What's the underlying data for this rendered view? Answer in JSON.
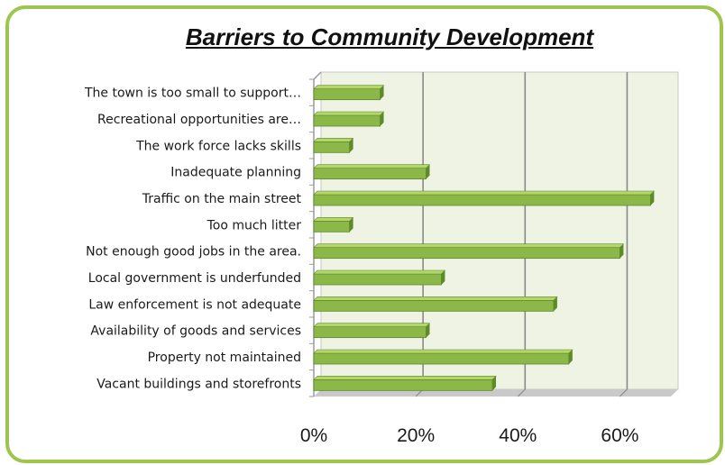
{
  "chart_data": {
    "type": "bar",
    "orientation": "horizontal",
    "title": "Barriers to Community Development",
    "categories": [
      "The town is too small to support…",
      "Recreational opportunities are…",
      "The work force lacks skills",
      "Inadequate planning",
      "Traffic on the main street",
      "Too much litter",
      "Not enough good jobs in the area.",
      "Local government is underfunded",
      "Law enforcement is not adequate",
      "Availability of goods and services",
      "Property not maintained",
      "Vacant buildings and storefronts"
    ],
    "values": [
      13,
      13,
      7,
      22,
      66,
      7,
      60,
      25,
      47,
      22,
      50,
      35
    ],
    "xlim": [
      0,
      70
    ],
    "xticks": [
      "0%",
      "20%",
      "40%",
      "60%"
    ],
    "xtick_values": [
      0,
      20,
      40,
      60
    ],
    "grid": true,
    "legend": "none",
    "colors": {
      "bar_top": "#b3d66a",
      "bar_face": "#8cb84a",
      "bar_edge": "#5e8a2a",
      "plot_bg": "#eef3e4",
      "frame": "#9dc54f",
      "grid": "#8a8a8a"
    }
  }
}
